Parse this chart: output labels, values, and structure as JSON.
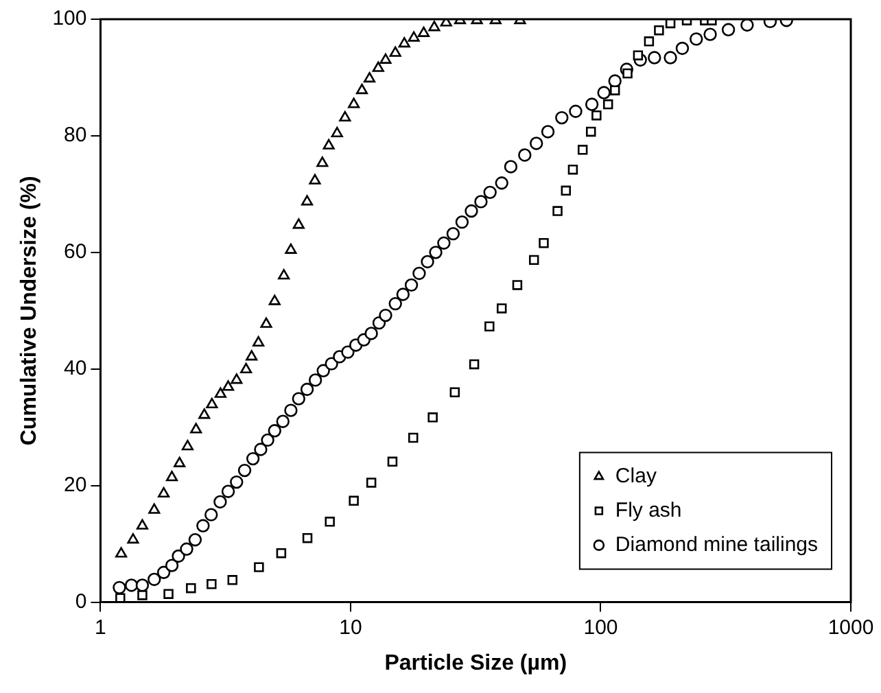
{
  "chart_data": {
    "type": "scatter",
    "xlabel": "Particle Size (µm)",
    "ylabel": "Cumulative Undersize (%)",
    "log": "x",
    "xlim": [
      1,
      1000
    ],
    "xticks": [
      1,
      10,
      100,
      1000
    ],
    "ylim": [
      0,
      100
    ],
    "yticks": [
      0,
      20,
      40,
      60,
      80,
      100
    ],
    "grid": false,
    "legend": "bottom right",
    "series": [
      {
        "name": "Clay",
        "color": "#000000",
        "marker": "triangle",
        "x": [
          1.21,
          1.35,
          1.47,
          1.64,
          1.79,
          1.93,
          2.07,
          2.23,
          2.41,
          2.6,
          2.79,
          3.02,
          3.24,
          3.5,
          3.82,
          4.02,
          4.28,
          4.6,
          4.97,
          5.41,
          5.77,
          6.2,
          6.7,
          7.2,
          7.71,
          8.18,
          8.83,
          9.5,
          10.3,
          11.1,
          11.9,
          12.9,
          13.8,
          15.1,
          16.4,
          17.9,
          19.6,
          21.6,
          24.1,
          27.4,
          32,
          38,
          47.6
        ],
        "values": [
          8.3,
          10.7,
          13.1,
          15.8,
          18.6,
          21.4,
          23.8,
          26.7,
          29.6,
          32.1,
          33.9,
          35.7,
          36.9,
          38.1,
          39.9,
          42.1,
          44.5,
          47.7,
          51.6,
          56,
          60.4,
          64.7,
          68.7,
          72.3,
          75.3,
          78.3,
          80.4,
          83.1,
          85.4,
          87.8,
          89.8,
          91.6,
          93,
          94.2,
          95.8,
          96.8,
          97.6,
          98.6,
          99.4,
          99.8,
          99.8,
          99.8,
          99.8
        ]
      },
      {
        "name": "Fly ash",
        "color": "#000000",
        "marker": "square",
        "x": [
          1.2,
          1.47,
          1.87,
          2.3,
          2.78,
          3.37,
          4.3,
          5.28,
          6.72,
          8.26,
          10.3,
          12.1,
          14.7,
          17.8,
          21.3,
          26.1,
          31.2,
          35.9,
          40.2,
          46.4,
          54.1,
          59.2,
          67.2,
          72.6,
          77.4,
          84.7,
          91.4,
          96.2,
          107,
          114,
          128,
          141,
          156,
          171,
          190,
          221,
          261,
          278
        ],
        "values": [
          0.7,
          1.2,
          1.4,
          2.4,
          3.1,
          3.8,
          6,
          8.4,
          11,
          13.8,
          17.4,
          20.5,
          24.1,
          28.2,
          31.7,
          36,
          40.8,
          47.3,
          50.4,
          54.4,
          58.7,
          61.6,
          67.1,
          70.6,
          74.2,
          77.6,
          80.7,
          83.5,
          85.4,
          87.8,
          90.7,
          93.8,
          96.2,
          98.1,
          99.3,
          99.8,
          99.8,
          99.8
        ]
      },
      {
        "name": "Diamond mine tailings",
        "color": "#000000",
        "marker": "circle",
        "x": [
          1.19,
          1.33,
          1.47,
          1.64,
          1.79,
          1.93,
          2.05,
          2.21,
          2.39,
          2.57,
          2.77,
          3.01,
          3.24,
          3.5,
          3.77,
          4.07,
          4.37,
          4.66,
          4.97,
          5.36,
          5.77,
          6.2,
          6.7,
          7.23,
          7.78,
          8.39,
          9.03,
          9.75,
          10.5,
          11.3,
          12.1,
          13,
          13.8,
          15.1,
          16.2,
          17.5,
          18.8,
          20.3,
          21.9,
          23.6,
          25.7,
          27.9,
          30.4,
          33.2,
          36.1,
          40.2,
          43.7,
          49.7,
          55.3,
          61.5,
          69.9,
          79.4,
          92.2,
          103,
          114,
          127,
          144,
          164,
          190,
          212,
          241,
          274,
          324,
          385,
          476,
          553
        ],
        "values": [
          2.5,
          2.9,
          2.9,
          3.9,
          5.1,
          6.3,
          7.9,
          9.1,
          10.7,
          13.1,
          15,
          17.2,
          19,
          20.6,
          22.6,
          24.6,
          26.2,
          27.8,
          29.4,
          31,
          32.9,
          34.9,
          36.5,
          38.1,
          39.7,
          40.9,
          42.1,
          42.9,
          44.1,
          45,
          46.1,
          47.9,
          49.2,
          51.2,
          52.8,
          54.4,
          56.4,
          58.4,
          60,
          61.6,
          63.2,
          65.2,
          67.1,
          68.7,
          70.3,
          71.9,
          74.7,
          76.7,
          78.7,
          80.7,
          83.1,
          84.2,
          85.4,
          87.4,
          89.4,
          91.4,
          93,
          93.4,
          93.4,
          95,
          96.6,
          97.4,
          98.2,
          99,
          99.6,
          99.8
        ]
      }
    ]
  }
}
